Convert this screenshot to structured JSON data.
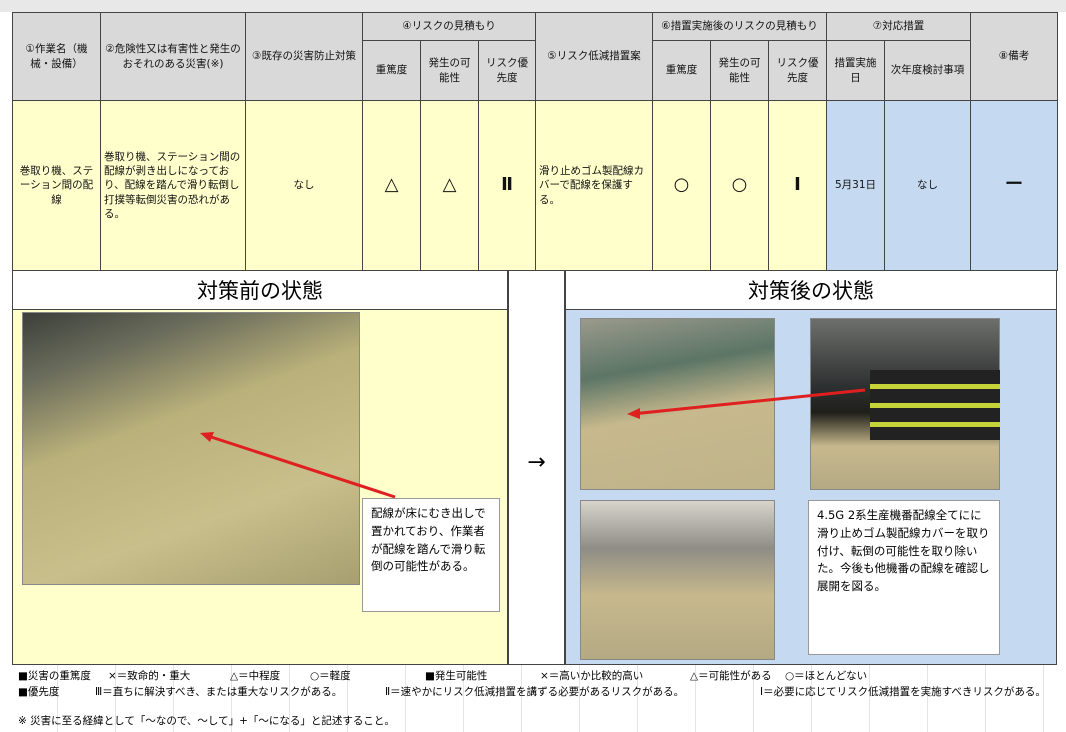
{
  "header": {
    "columns": [
      "①作業名（機械・設備）",
      "②危険性又は有害性と発生のおそれのある災害(※)",
      "③既存の災害防止対策",
      "⑤リスク低減措置案",
      "⑧備考"
    ],
    "risk_group": "④リスクの見積もり",
    "risk_sub": [
      "重篤度",
      "発生の可能性",
      "リスク優先度"
    ],
    "after_group": "⑥措置実施後のリスクの見積もり",
    "after_sub": [
      "重篤度",
      "発生の可能性",
      "リスク優先度"
    ],
    "measure_group": "⑦対応措置",
    "measure_sub": [
      "措置実施日",
      "次年度検討事項"
    ]
  },
  "row": [
    "巻取り機、ステーション間の配線",
    "巻取り機、ステーション間の配線が剥き出しになっており、配線を踏んで滑り転倒し打撲等転倒災害の恐れがある。",
    "なし",
    "△",
    "△",
    "Ⅱ",
    "滑り止めゴム製配線カバーで配線を保護する。",
    "○",
    "○",
    "Ⅰ",
    "5月31日",
    "なし",
    "ー"
  ],
  "before": {
    "title": "対策前の状態",
    "note": "配線が床にむき出しで置かれており、作業者が配線を踏んで滑り転倒の可能性がある。"
  },
  "arrow": "→",
  "after": {
    "title": "対策後の状態",
    "note": "4.5G 2系生産機番配線全てにに滑り止めゴム製配線カバーを取り付け、転倒の可能性を取り除いた。今後も他機番の配線を確認し展開を図る。"
  },
  "legend": [
    [
      "■災害の重篤度",
      "×＝致命的・重大",
      "△＝中程度",
      "○＝軽度",
      "■発生可能性",
      "×＝高いか比較的高い",
      "△＝可能性がある",
      "○＝ほとんどない"
    ],
    [
      "■優先度",
      "Ⅲ＝直ちに解決すべき、または重大なリスクがある。",
      "Ⅱ＝速やかにリスク低減措置を講ずる必要があるリスクがある。",
      "Ⅰ＝必要に応じてリスク低減措置を実施すべきリスクがある。"
    ],
    [
      "※ 災害に至る経緯として「～なので、～して」+「～になる」と記述すること。"
    ]
  ]
}
